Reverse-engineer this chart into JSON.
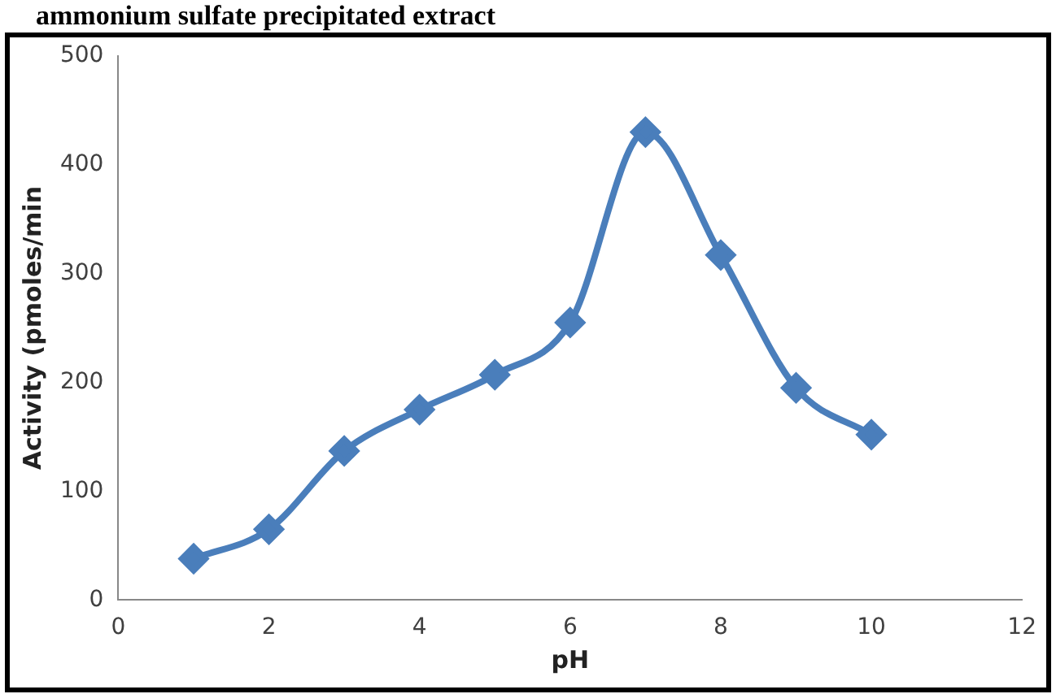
{
  "chart_data": {
    "type": "line",
    "title": "ammonium sulfate precipitated extract",
    "xlabel": "pH",
    "ylabel": "Activity (pmoles/min",
    "x": [
      1,
      2,
      3,
      4,
      5,
      6,
      7,
      8,
      9,
      10
    ],
    "series": [
      {
        "color": "#4a7ebb",
        "values": [
          38,
          65,
          137,
          175,
          207,
          255,
          430,
          317,
          195,
          152
        ]
      }
    ],
    "xlim": [
      0,
      12
    ],
    "xticks": [
      0,
      2,
      4,
      6,
      8,
      10,
      12
    ],
    "ylim": [
      0,
      500
    ],
    "yticks": [
      0,
      100,
      200,
      300,
      400,
      500
    ],
    "grid": false,
    "legend": false,
    "marker": "diamond",
    "line_style": "solid"
  }
}
